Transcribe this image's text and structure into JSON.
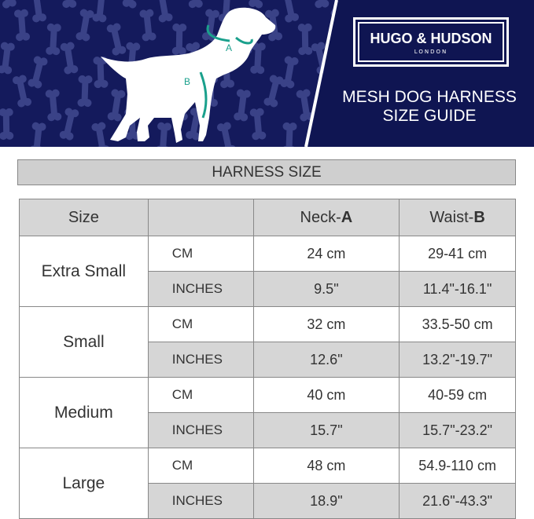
{
  "brand": {
    "name": "HUGO & HUDSON",
    "location": "LONDON"
  },
  "title_lines": [
    "MESH DOG HARNESS",
    "SIZE GUIDE"
  ],
  "diagram_labels": {
    "neck": "A",
    "waist": "B"
  },
  "section_title": "HARNESS SIZE",
  "table": {
    "headers": {
      "size": "Size",
      "unit": "",
      "neck_prefix": "Neck-",
      "neck_letter": "A",
      "waist_prefix": "Waist-",
      "waist_letter": "B"
    },
    "rows": [
      {
        "size": "Extra Small",
        "cm": {
          "unit": "CM",
          "neck": "24 cm",
          "waist": "29-41 cm"
        },
        "in": {
          "unit": "INCHES",
          "neck": "9.5\"",
          "waist": "11.4\"-16.1\""
        }
      },
      {
        "size": "Small",
        "cm": {
          "unit": "CM",
          "neck": "32 cm",
          "waist": "33.5-50 cm"
        },
        "in": {
          "unit": "INCHES",
          "neck": "12.6\"",
          "waist": "13.2\"-19.7\""
        }
      },
      {
        "size": "Medium",
        "cm": {
          "unit": "CM",
          "neck": "40 cm",
          "waist": "40-59 cm"
        },
        "in": {
          "unit": "INCHES",
          "neck": "15.7\"",
          "waist": "15.7\"-23.2\""
        }
      },
      {
        "size": "Large",
        "cm": {
          "unit": "CM",
          "neck": "48 cm",
          "waist": "54.9-110 cm"
        },
        "in": {
          "unit": "INCHES",
          "neck": "18.9\"",
          "waist": "21.6\"-43.3\""
        }
      }
    ]
  },
  "colors": {
    "navy": "#141a5c",
    "bone": "#3c4488",
    "accent": "#1aa08c",
    "header_gray": "#d6d6d6"
  }
}
